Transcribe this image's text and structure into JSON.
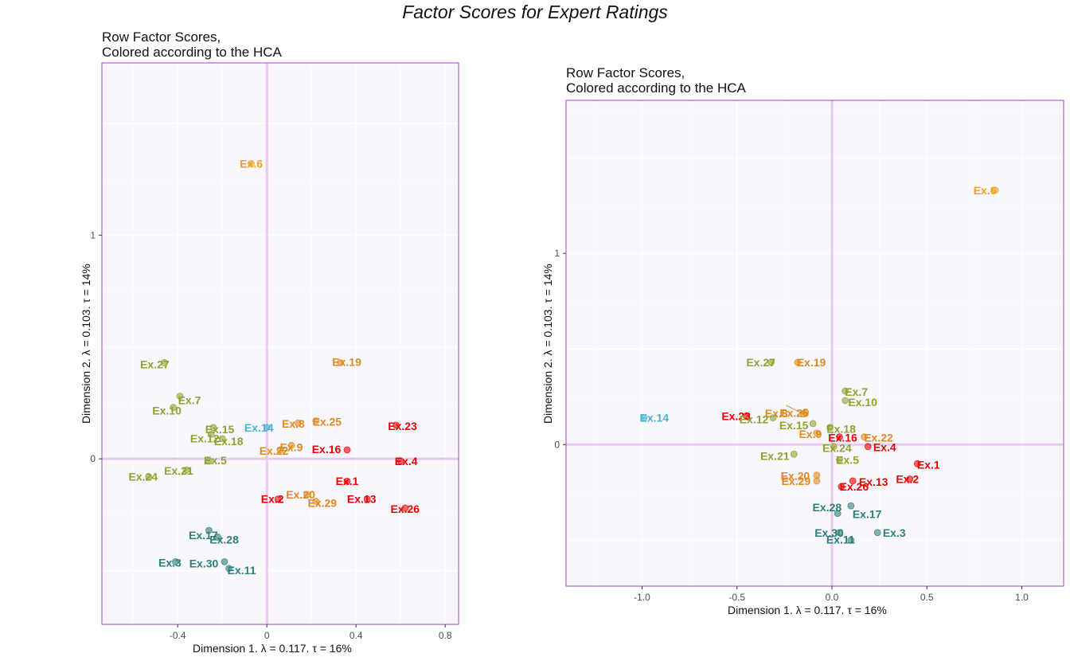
{
  "title": "Factor Scores for Expert Ratings",
  "colors": {
    "red": "#EE0000",
    "orange": "#E08A1E",
    "olive": "#8FA32E",
    "teal": "#2E7F78",
    "cyan": "#4CB4D0",
    "gold": "#EFA020",
    "frame": "#9A44C8",
    "zero_line": "#E8C8EE",
    "panel_bg": "#F8F7FD"
  },
  "chart_data": [
    {
      "type": "scatter",
      "title": "Row Factor Scores,\nColored according to the HCA",
      "xlabel": "Dimension 1.   λ = 0.117.  τ = 16%",
      "ylabel": "Dimension 2.   λ = 0.103.  τ = 14%",
      "xlim": [
        -0.74,
        0.86
      ],
      "ylim": [
        -0.74,
        1.77
      ],
      "xticks": [
        -0.4,
        0,
        0.4,
        0.8
      ],
      "xtick_labels": [
        "-0.4",
        "0",
        "0.4",
        "0.8"
      ],
      "yticks": [
        0,
        1
      ],
      "ytick_labels": [
        "0",
        "1"
      ],
      "grid": true,
      "points": [
        {
          "label": "Ex.6",
          "x": -0.07,
          "y": 1.32,
          "color": "gold"
        },
        {
          "label": "Ex.19",
          "x": 0.33,
          "y": 0.43,
          "color": "orange"
        },
        {
          "label": "Ex.27",
          "x": -0.46,
          "y": 0.43,
          "color": "olive"
        },
        {
          "label": "Ex.7",
          "x": -0.39,
          "y": 0.28,
          "color": "olive"
        },
        {
          "label": "Ex.10",
          "x": -0.42,
          "y": 0.23,
          "color": "olive"
        },
        {
          "label": "Ex.15",
          "x": -0.24,
          "y": 0.14,
          "color": "olive"
        },
        {
          "label": "Ex.12",
          "x": -0.25,
          "y": 0.11,
          "color": "olive"
        },
        {
          "label": "Ex.18",
          "x": -0.2,
          "y": 0.09,
          "color": "olive"
        },
        {
          "label": "Ex.14",
          "x": 0.0,
          "y": 0.14,
          "color": "cyan"
        },
        {
          "label": "Ex.8",
          "x": 0.14,
          "y": 0.16,
          "color": "orange"
        },
        {
          "label": "Ex.25",
          "x": 0.22,
          "y": 0.17,
          "color": "orange"
        },
        {
          "label": "Ex.23",
          "x": 0.58,
          "y": 0.15,
          "color": "red"
        },
        {
          "label": "Ex.9",
          "x": 0.11,
          "y": 0.06,
          "color": "orange"
        },
        {
          "label": "Ex.22",
          "x": 0.06,
          "y": 0.04,
          "color": "orange"
        },
        {
          "label": "Ex.16",
          "x": 0.36,
          "y": 0.04,
          "color": "red"
        },
        {
          "label": "Ex.4",
          "x": 0.6,
          "y": -0.01,
          "color": "red"
        },
        {
          "label": "Ex.21",
          "x": -0.36,
          "y": -0.05,
          "color": "olive"
        },
        {
          "label": "Ex.5",
          "x": -0.26,
          "y": -0.01,
          "color": "olive"
        },
        {
          "label": "Ex.24",
          "x": -0.53,
          "y": -0.08,
          "color": "olive"
        },
        {
          "label": "Ex.1",
          "x": 0.36,
          "y": -0.1,
          "color": "red"
        },
        {
          "label": "Ex.13",
          "x": 0.45,
          "y": -0.18,
          "color": "red"
        },
        {
          "label": "Ex.20",
          "x": 0.18,
          "y": -0.16,
          "color": "orange"
        },
        {
          "label": "Ex.29",
          "x": 0.22,
          "y": -0.19,
          "color": "orange"
        },
        {
          "label": "Ex.2",
          "x": 0.05,
          "y": -0.18,
          "color": "red"
        },
        {
          "label": "Ex.26",
          "x": 0.62,
          "y": -0.22,
          "color": "red"
        },
        {
          "label": "Ex.17",
          "x": -0.26,
          "y": -0.32,
          "color": "teal"
        },
        {
          "label": "Ex.28",
          "x": -0.22,
          "y": -0.35,
          "color": "teal"
        },
        {
          "label": "Ex.3",
          "x": -0.41,
          "y": -0.46,
          "color": "teal"
        },
        {
          "label": "Ex.30",
          "x": -0.19,
          "y": -0.46,
          "color": "teal"
        },
        {
          "label": "Ex.11",
          "x": -0.17,
          "y": -0.49,
          "color": "teal"
        }
      ]
    },
    {
      "type": "scatter",
      "title": "Row Factor Scores,\nColored according to the HCA",
      "xlabel": "Dimension 1.   λ = 0.117.  τ = 16%",
      "ylabel": "Dimension 2.   λ = 0.103.  τ = 14%",
      "xlim": [
        -1.4,
        1.22
      ],
      "ylim": [
        -0.74,
        1.8
      ],
      "xticks": [
        -1.0,
        -0.5,
        0,
        0.5,
        1.0
      ],
      "xtick_labels": [
        "-1.0",
        "-0.5",
        "0.0",
        "0.5",
        "1.0"
      ],
      "yticks": [
        0,
        1
      ],
      "ytick_labels": [
        "0",
        "1"
      ],
      "grid": true,
      "points": [
        {
          "label": "Ex.6",
          "x": 0.86,
          "y": 1.33,
          "color": "gold"
        },
        {
          "label": "Ex.27",
          "x": -0.32,
          "y": 0.43,
          "color": "olive"
        },
        {
          "label": "Ex.19",
          "x": -0.18,
          "y": 0.43,
          "color": "orange"
        },
        {
          "label": "Ex.7",
          "x": 0.07,
          "y": 0.28,
          "color": "olive"
        },
        {
          "label": "Ex.8",
          "x": -0.15,
          "y": 0.16,
          "color": "orange"
        },
        {
          "label": "Ex.10",
          "x": 0.07,
          "y": 0.23,
          "color": "olive"
        },
        {
          "label": "Ex.25",
          "x": -0.14,
          "y": 0.17,
          "color": "orange"
        },
        {
          "label": "Ex.14",
          "x": -0.99,
          "y": 0.14,
          "color": "cyan"
        },
        {
          "label": "Ex.23",
          "x": -0.45,
          "y": 0.15,
          "color": "red"
        },
        {
          "label": "Ex.18",
          "x": -0.01,
          "y": 0.09,
          "color": "olive"
        },
        {
          "label": "Ex.22",
          "x": 0.17,
          "y": 0.04,
          "color": "orange"
        },
        {
          "label": "Ex.12",
          "x": -0.31,
          "y": 0.14,
          "color": "olive"
        },
        {
          "label": "Ex.15",
          "x": -0.1,
          "y": 0.11,
          "color": "olive"
        },
        {
          "label": "Ex.16",
          "x": 0.04,
          "y": 0.04,
          "color": "red"
        },
        {
          "label": "Ex.4",
          "x": 0.19,
          "y": -0.01,
          "color": "red"
        },
        {
          "label": "Ex.21",
          "x": -0.2,
          "y": -0.05,
          "color": "olive"
        },
        {
          "label": "Ex.9",
          "x": -0.08,
          "y": 0.06,
          "color": "orange"
        },
        {
          "label": "Ex.1",
          "x": 0.45,
          "y": -0.1,
          "color": "red"
        },
        {
          "label": "Ex.5",
          "x": 0.04,
          "y": -0.08,
          "color": "olive"
        },
        {
          "label": "Ex.20",
          "x": -0.08,
          "y": -0.16,
          "color": "orange"
        },
        {
          "label": "Ex.24",
          "x": 0.01,
          "y": -0.01,
          "color": "olive"
        },
        {
          "label": "Ex.13",
          "x": 0.11,
          "y": -0.19,
          "color": "red"
        },
        {
          "label": "Ex.2",
          "x": 0.41,
          "y": -0.18,
          "color": "red"
        },
        {
          "label": "Ex.29",
          "x": -0.08,
          "y": -0.19,
          "color": "orange"
        },
        {
          "label": "Ex.26",
          "x": 0.05,
          "y": -0.22,
          "color": "red"
        },
        {
          "label": "Ex.28",
          "x": 0.1,
          "y": -0.32,
          "color": "teal"
        },
        {
          "label": "Ex.17",
          "x": 0.03,
          "y": -0.36,
          "color": "teal"
        },
        {
          "label": "Ex.30",
          "x": 0.04,
          "y": -0.46,
          "color": "teal"
        },
        {
          "label": "Ex.3",
          "x": 0.24,
          "y": -0.46,
          "color": "teal"
        },
        {
          "label": "Ex.11",
          "x": 0.1,
          "y": -0.5,
          "color": "teal"
        }
      ]
    }
  ]
}
